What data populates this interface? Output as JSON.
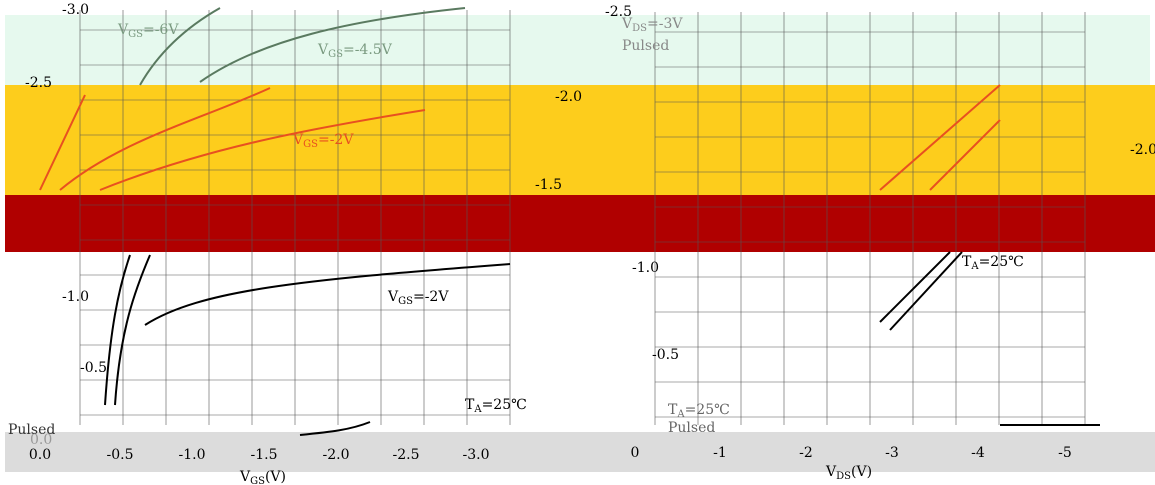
{
  "left_chart": {
    "y_labels": [
      "-3.0",
      "-2.5",
      "-1.0",
      "-0.5",
      "0.0"
    ],
    "x_labels": [
      "0.0",
      "-0.5",
      "-1.0",
      "-1.5",
      "-2.0",
      "-2.5",
      "-3.0"
    ],
    "x_title": {
      "main": "V",
      "sub": "GS",
      "unit": "(V)"
    },
    "annotations": [
      {
        "main": "V",
        "sub": "GS",
        "rest": "=-6V"
      },
      {
        "main": "V",
        "sub": "GS",
        "rest": "=-4.5V"
      },
      {
        "main": "V",
        "sub": "GS",
        "rest": "=-2V"
      },
      {
        "main": "V",
        "sub": "GS",
        "rest": "=-2V"
      },
      {
        "main": "T",
        "sub": "A",
        "rest": "=25℃"
      }
    ],
    "note": "Pulsed"
  },
  "right_chart": {
    "y_labels": [
      "-2.5",
      "-2.0",
      "-1.5",
      "-1.0",
      "-0.5",
      "-2.0"
    ],
    "x_labels": [
      "0",
      "-1",
      "-2",
      "-3",
      "-4",
      "-5"
    ],
    "x_title": {
      "main": "V",
      "sub": "DS",
      "unit": "(V)"
    },
    "annotations": [
      {
        "main": "V",
        "sub": "DS",
        "rest": "=-3V"
      },
      {
        "main": "T",
        "sub": "A",
        "rest": "=25℃"
      },
      {
        "main": "T",
        "sub": "A",
        "rest": "=25℃"
      }
    ],
    "notes": [
      "Pulsed",
      "Pulsed"
    ]
  }
}
